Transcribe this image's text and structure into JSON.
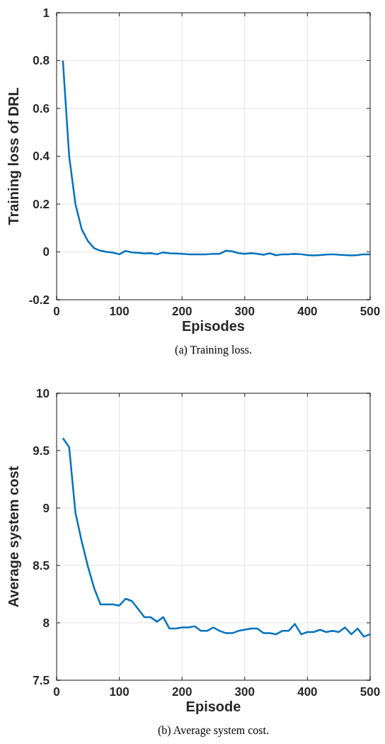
{
  "chart_data": [
    {
      "type": "line",
      "xlabel": "Episodes",
      "ylabel": "Training loss of DRL",
      "annotations": [
        "(a) Training loss."
      ],
      "grid": true,
      "xlim": [
        0,
        500
      ],
      "ylim": [
        -0.2,
        1
      ],
      "xticks": [
        0,
        100,
        200,
        300,
        400,
        500
      ],
      "yticks": [
        -0.2,
        0,
        0.2,
        0.4,
        0.6,
        0.8,
        1
      ],
      "x": [
        10,
        20,
        30,
        40,
        50,
        60,
        70,
        80,
        90,
        100,
        110,
        120,
        130,
        140,
        150,
        160,
        170,
        180,
        190,
        200,
        210,
        220,
        230,
        240,
        250,
        260,
        270,
        280,
        290,
        300,
        310,
        320,
        330,
        340,
        350,
        360,
        370,
        380,
        390,
        400,
        410,
        420,
        430,
        440,
        450,
        460,
        470,
        480,
        490,
        500
      ],
      "series": [
        {
          "color": "#0072bd",
          "values": [
            0.8,
            0.4,
            0.2,
            0.095,
            0.045,
            0.015,
            0.005,
            0.0,
            -0.003,
            -0.01,
            0.004,
            -0.002,
            -0.004,
            -0.007,
            -0.005,
            -0.01,
            -0.002,
            -0.006,
            -0.007,
            -0.008,
            -0.01,
            -0.01,
            -0.01,
            -0.01,
            -0.008,
            -0.008,
            0.005,
            0.002,
            -0.005,
            -0.008,
            -0.005,
            -0.008,
            -0.012,
            -0.006,
            -0.014,
            -0.01,
            -0.01,
            -0.008,
            -0.01,
            -0.013,
            -0.015,
            -0.013,
            -0.011,
            -0.01,
            -0.012,
            -0.013,
            -0.015,
            -0.013,
            -0.01,
            -0.01
          ]
        }
      ]
    },
    {
      "type": "line",
      "xlabel": "Episode",
      "ylabel": "Average system cost",
      "annotations": [
        "(b) Average system cost."
      ],
      "grid": true,
      "xlim": [
        0,
        500
      ],
      "ylim": [
        7.5,
        10
      ],
      "xticks": [
        0,
        100,
        200,
        300,
        400,
        500
      ],
      "yticks": [
        7.5,
        8,
        8.5,
        9,
        9.5,
        10
      ],
      "x": [
        10,
        20,
        30,
        40,
        50,
        60,
        70,
        80,
        90,
        100,
        110,
        120,
        130,
        140,
        150,
        160,
        170,
        180,
        190,
        200,
        210,
        220,
        230,
        240,
        250,
        260,
        270,
        280,
        290,
        300,
        310,
        320,
        330,
        340,
        350,
        360,
        370,
        380,
        390,
        400,
        410,
        420,
        430,
        440,
        450,
        460,
        470,
        480,
        490,
        500
      ],
      "series": [
        {
          "color": "#0072bd",
          "values": [
            9.61,
            9.53,
            8.96,
            8.71,
            8.49,
            8.3,
            8.16,
            8.16,
            8.16,
            8.15,
            8.21,
            8.19,
            8.12,
            8.05,
            8.05,
            8.01,
            8.05,
            7.95,
            7.95,
            7.96,
            7.96,
            7.97,
            7.93,
            7.93,
            7.96,
            7.93,
            7.91,
            7.91,
            7.93,
            7.94,
            7.95,
            7.95,
            7.91,
            7.91,
            7.9,
            7.93,
            7.93,
            7.99,
            7.9,
            7.92,
            7.92,
            7.94,
            7.92,
            7.93,
            7.92,
            7.96,
            7.9,
            7.95,
            7.88,
            7.9
          ]
        }
      ]
    }
  ]
}
